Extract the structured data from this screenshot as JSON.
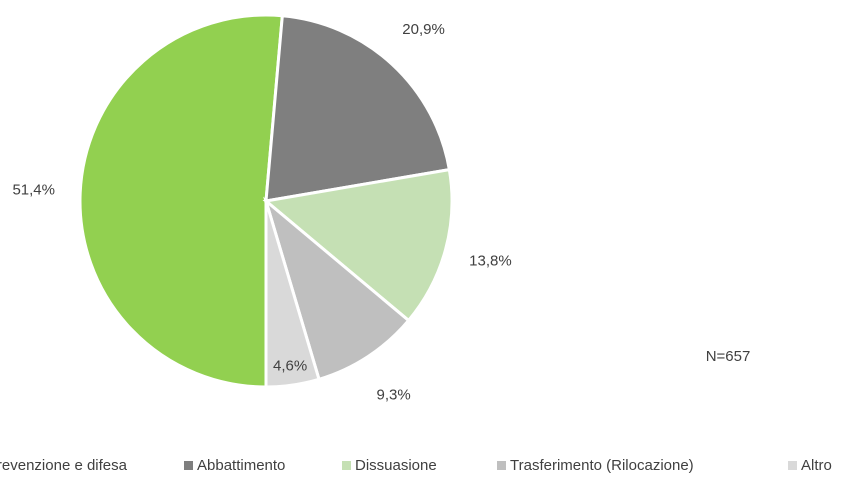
{
  "chart_data": {
    "type": "pie",
    "categories": [
      "Prevenzione e difesa",
      "Abbattimento",
      "Dissuasione",
      "Trasferimento (Rilocazione)",
      "Altro"
    ],
    "values": [
      51.4,
      20.9,
      13.8,
      9.3,
      4.6
    ],
    "value_labels": [
      "51,4%",
      "20,9%",
      "13,8%",
      "9,3%",
      "4,6%"
    ],
    "colors": [
      "#92d050",
      "#7f7f7f",
      "#c5e0b4",
      "#bfbfbf",
      "#d9d9d9"
    ],
    "annotation": "N=657",
    "legend": "bottom"
  }
}
